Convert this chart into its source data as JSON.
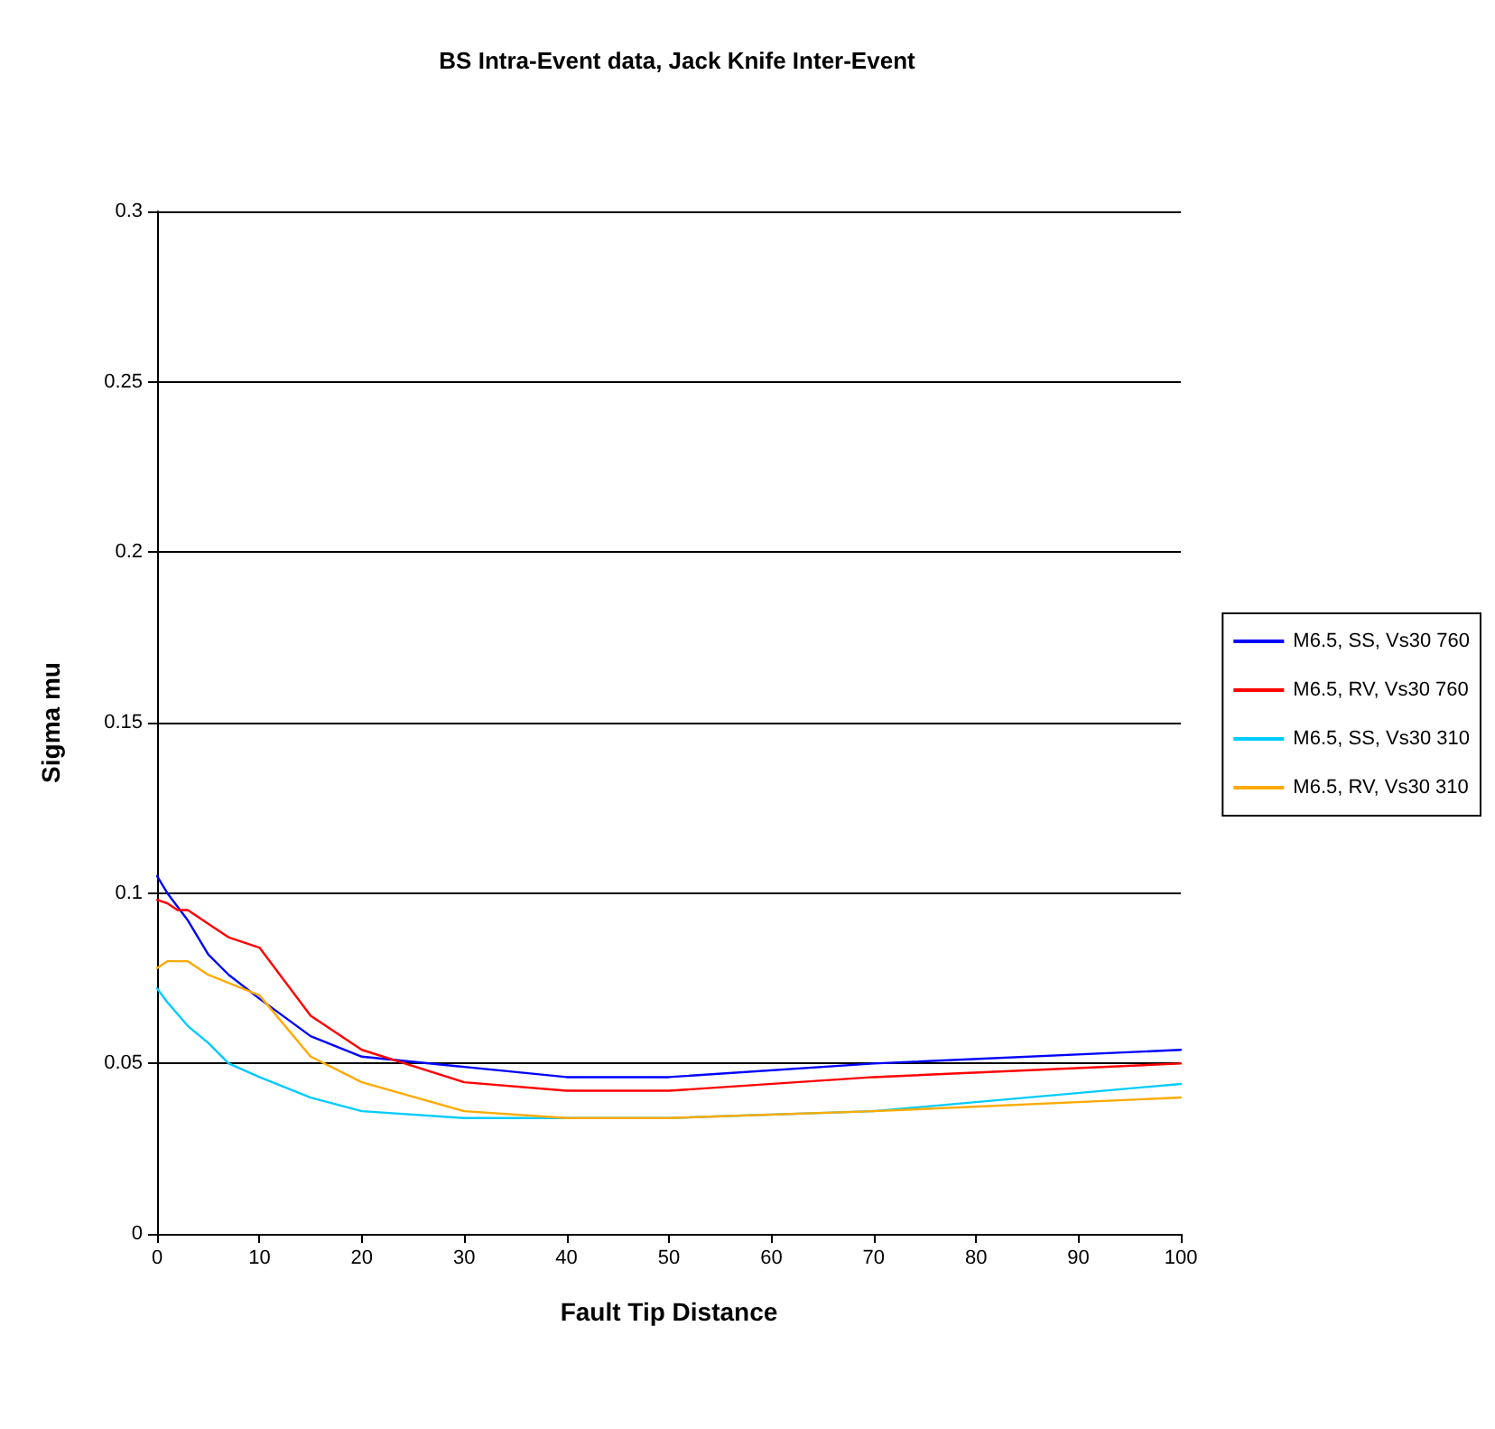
{
  "chart_data": {
    "type": "line",
    "title": "BS Intra-Event data, Jack Knife Inter-Event",
    "xlabel": "Fault Tip Distance",
    "ylabel": "Sigma mu",
    "xlim": [
      0,
      100
    ],
    "xticks": [
      0,
      10,
      20,
      30,
      40,
      50,
      60,
      70,
      80,
      90,
      100
    ],
    "ylim": [
      0,
      0.3
    ],
    "yticks": [
      0,
      0.05,
      0.1,
      0.15,
      0.2,
      0.25,
      0.3
    ],
    "grid": "y",
    "legend": "right",
    "marker": "none",
    "series": [
      {
        "name": "M6.5, SS, Vs30 760",
        "color": "#0000ff",
        "x": [
          0,
          1,
          3,
          5,
          7,
          10,
          15,
          20,
          30,
          40,
          50,
          70,
          100
        ],
        "values": [
          0.105,
          0.1,
          0.092,
          0.082,
          0.076,
          0.069,
          0.058,
          0.052,
          0.049,
          0.046,
          0.046,
          0.05,
          0.054
        ]
      },
      {
        "name": "M6.5, RV, Vs30 760",
        "color": "#ff0000",
        "x": [
          0,
          1,
          2,
          3,
          5,
          7,
          10,
          15,
          20,
          30,
          40,
          50,
          70,
          100
        ],
        "values": [
          0.098,
          0.097,
          0.095,
          0.095,
          0.091,
          0.087,
          0.084,
          0.064,
          0.054,
          0.0445,
          0.042,
          0.042,
          0.046,
          0.05
        ]
      },
      {
        "name": "M6.5, SS, Vs30 310",
        "color": "#00ccff",
        "x": [
          0,
          1,
          3,
          5,
          7,
          10,
          15,
          20,
          30,
          40,
          50,
          70,
          100
        ],
        "values": [
          0.072,
          0.068,
          0.061,
          0.056,
          0.05,
          0.046,
          0.04,
          0.036,
          0.034,
          0.034,
          0.034,
          0.036,
          0.044
        ]
      },
      {
        "name": "M6.5, RV, Vs30 310",
        "color": "#ffaa00",
        "x": [
          0,
          1,
          3,
          5,
          10,
          15,
          20,
          30,
          40,
          50,
          70,
          100
        ],
        "values": [
          0.078,
          0.08,
          0.08,
          0.076,
          0.07,
          0.052,
          0.0445,
          0.036,
          0.034,
          0.034,
          0.036,
          0.04
        ]
      }
    ]
  }
}
